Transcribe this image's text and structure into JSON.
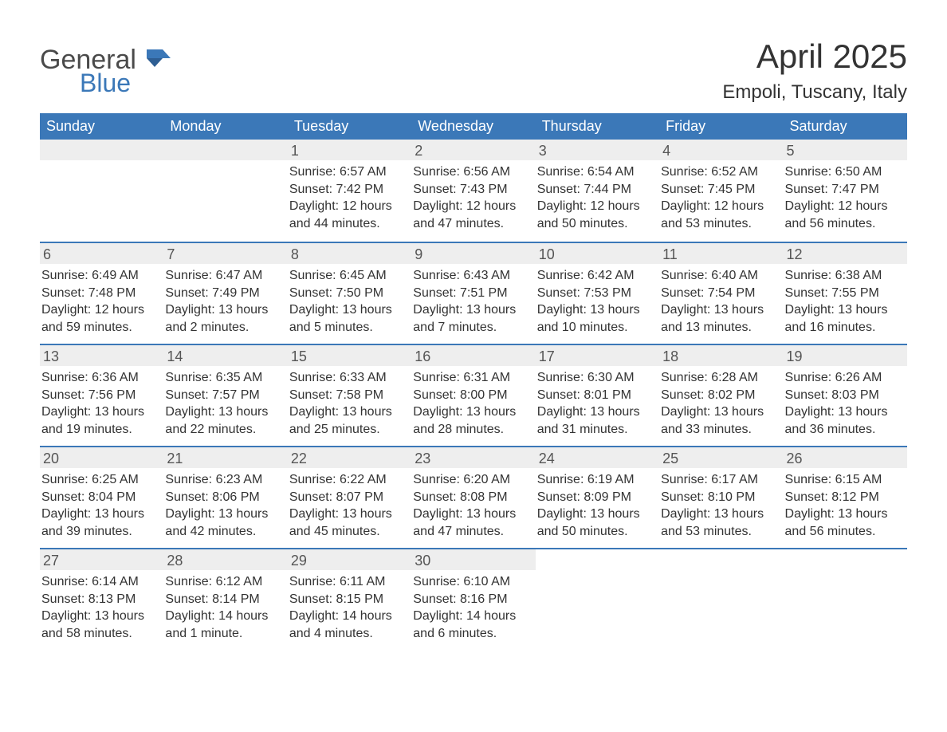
{
  "logo": {
    "word1": "General",
    "word2": "Blue"
  },
  "title": "April 2025",
  "location": "Empoli, Tuscany, Italy",
  "colors": {
    "header_bg": "#3b78b8",
    "header_text": "#ffffff",
    "daynum_bg": "#eeeeee",
    "row_border": "#3b78b8",
    "body_text": "#333333",
    "page_bg": "#ffffff"
  },
  "day_names": [
    "Sunday",
    "Monday",
    "Tuesday",
    "Wednesday",
    "Thursday",
    "Friday",
    "Saturday"
  ],
  "weeks": [
    [
      {
        "n": "",
        "sunrise": "",
        "sunset": "",
        "daylight": ""
      },
      {
        "n": "",
        "sunrise": "",
        "sunset": "",
        "daylight": ""
      },
      {
        "n": "1",
        "sunrise": "Sunrise: 6:57 AM",
        "sunset": "Sunset: 7:42 PM",
        "daylight": "Daylight: 12 hours and 44 minutes."
      },
      {
        "n": "2",
        "sunrise": "Sunrise: 6:56 AM",
        "sunset": "Sunset: 7:43 PM",
        "daylight": "Daylight: 12 hours and 47 minutes."
      },
      {
        "n": "3",
        "sunrise": "Sunrise: 6:54 AM",
        "sunset": "Sunset: 7:44 PM",
        "daylight": "Daylight: 12 hours and 50 minutes."
      },
      {
        "n": "4",
        "sunrise": "Sunrise: 6:52 AM",
        "sunset": "Sunset: 7:45 PM",
        "daylight": "Daylight: 12 hours and 53 minutes."
      },
      {
        "n": "5",
        "sunrise": "Sunrise: 6:50 AM",
        "sunset": "Sunset: 7:47 PM",
        "daylight": "Daylight: 12 hours and 56 minutes."
      }
    ],
    [
      {
        "n": "6",
        "sunrise": "Sunrise: 6:49 AM",
        "sunset": "Sunset: 7:48 PM",
        "daylight": "Daylight: 12 hours and 59 minutes."
      },
      {
        "n": "7",
        "sunrise": "Sunrise: 6:47 AM",
        "sunset": "Sunset: 7:49 PM",
        "daylight": "Daylight: 13 hours and 2 minutes."
      },
      {
        "n": "8",
        "sunrise": "Sunrise: 6:45 AM",
        "sunset": "Sunset: 7:50 PM",
        "daylight": "Daylight: 13 hours and 5 minutes."
      },
      {
        "n": "9",
        "sunrise": "Sunrise: 6:43 AM",
        "sunset": "Sunset: 7:51 PM",
        "daylight": "Daylight: 13 hours and 7 minutes."
      },
      {
        "n": "10",
        "sunrise": "Sunrise: 6:42 AM",
        "sunset": "Sunset: 7:53 PM",
        "daylight": "Daylight: 13 hours and 10 minutes."
      },
      {
        "n": "11",
        "sunrise": "Sunrise: 6:40 AM",
        "sunset": "Sunset: 7:54 PM",
        "daylight": "Daylight: 13 hours and 13 minutes."
      },
      {
        "n": "12",
        "sunrise": "Sunrise: 6:38 AM",
        "sunset": "Sunset: 7:55 PM",
        "daylight": "Daylight: 13 hours and 16 minutes."
      }
    ],
    [
      {
        "n": "13",
        "sunrise": "Sunrise: 6:36 AM",
        "sunset": "Sunset: 7:56 PM",
        "daylight": "Daylight: 13 hours and 19 minutes."
      },
      {
        "n": "14",
        "sunrise": "Sunrise: 6:35 AM",
        "sunset": "Sunset: 7:57 PM",
        "daylight": "Daylight: 13 hours and 22 minutes."
      },
      {
        "n": "15",
        "sunrise": "Sunrise: 6:33 AM",
        "sunset": "Sunset: 7:58 PM",
        "daylight": "Daylight: 13 hours and 25 minutes."
      },
      {
        "n": "16",
        "sunrise": "Sunrise: 6:31 AM",
        "sunset": "Sunset: 8:00 PM",
        "daylight": "Daylight: 13 hours and 28 minutes."
      },
      {
        "n": "17",
        "sunrise": "Sunrise: 6:30 AM",
        "sunset": "Sunset: 8:01 PM",
        "daylight": "Daylight: 13 hours and 31 minutes."
      },
      {
        "n": "18",
        "sunrise": "Sunrise: 6:28 AM",
        "sunset": "Sunset: 8:02 PM",
        "daylight": "Daylight: 13 hours and 33 minutes."
      },
      {
        "n": "19",
        "sunrise": "Sunrise: 6:26 AM",
        "sunset": "Sunset: 8:03 PM",
        "daylight": "Daylight: 13 hours and 36 minutes."
      }
    ],
    [
      {
        "n": "20",
        "sunrise": "Sunrise: 6:25 AM",
        "sunset": "Sunset: 8:04 PM",
        "daylight": "Daylight: 13 hours and 39 minutes."
      },
      {
        "n": "21",
        "sunrise": "Sunrise: 6:23 AM",
        "sunset": "Sunset: 8:06 PM",
        "daylight": "Daylight: 13 hours and 42 minutes."
      },
      {
        "n": "22",
        "sunrise": "Sunrise: 6:22 AM",
        "sunset": "Sunset: 8:07 PM",
        "daylight": "Daylight: 13 hours and 45 minutes."
      },
      {
        "n": "23",
        "sunrise": "Sunrise: 6:20 AM",
        "sunset": "Sunset: 8:08 PM",
        "daylight": "Daylight: 13 hours and 47 minutes."
      },
      {
        "n": "24",
        "sunrise": "Sunrise: 6:19 AM",
        "sunset": "Sunset: 8:09 PM",
        "daylight": "Daylight: 13 hours and 50 minutes."
      },
      {
        "n": "25",
        "sunrise": "Sunrise: 6:17 AM",
        "sunset": "Sunset: 8:10 PM",
        "daylight": "Daylight: 13 hours and 53 minutes."
      },
      {
        "n": "26",
        "sunrise": "Sunrise: 6:15 AM",
        "sunset": "Sunset: 8:12 PM",
        "daylight": "Daylight: 13 hours and 56 minutes."
      }
    ],
    [
      {
        "n": "27",
        "sunrise": "Sunrise: 6:14 AM",
        "sunset": "Sunset: 8:13 PM",
        "daylight": "Daylight: 13 hours and 58 minutes."
      },
      {
        "n": "28",
        "sunrise": "Sunrise: 6:12 AM",
        "sunset": "Sunset: 8:14 PM",
        "daylight": "Daylight: 14 hours and 1 minute."
      },
      {
        "n": "29",
        "sunrise": "Sunrise: 6:11 AM",
        "sunset": "Sunset: 8:15 PM",
        "daylight": "Daylight: 14 hours and 4 minutes."
      },
      {
        "n": "30",
        "sunrise": "Sunrise: 6:10 AM",
        "sunset": "Sunset: 8:16 PM",
        "daylight": "Daylight: 14 hours and 6 minutes."
      },
      {
        "n": "",
        "sunrise": "",
        "sunset": "",
        "daylight": ""
      },
      {
        "n": "",
        "sunrise": "",
        "sunset": "",
        "daylight": ""
      },
      {
        "n": "",
        "sunrise": "",
        "sunset": "",
        "daylight": ""
      }
    ]
  ]
}
